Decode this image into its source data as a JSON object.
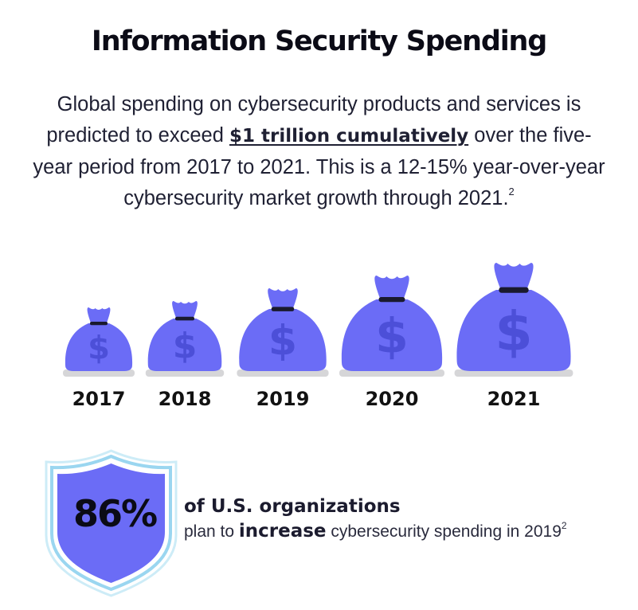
{
  "title": "Information Security Spending",
  "intro": {
    "part1": "Global spending on cybersecurity products and services is predicted to exceed ",
    "highlight": "$1 trillion cumulatively",
    "part2": " over the five-year period from 2017 to 2021. This is a 12-15% year-over-year cybersecurity market growth through 2021.",
    "footnote": "2"
  },
  "bag_icon": "money-bag-icon",
  "bag_symbol": "$",
  "colors": {
    "bag": "#6b6cf6",
    "bag_symbol": "#4c4fd8",
    "tie": "#1a1a2e",
    "shadow": "#d6d6d8",
    "shield_fill": "#6b6cf6",
    "shield_outline": "#9ad6f0"
  },
  "years": [
    {
      "label": "2017",
      "relative_size": 1.0
    },
    {
      "label": "2018",
      "relative_size": 1.1
    },
    {
      "label": "2019",
      "relative_size": 1.3
    },
    {
      "label": "2020",
      "relative_size": 1.5
    },
    {
      "label": "2021",
      "relative_size": 1.7
    }
  ],
  "stat": {
    "value": "86%",
    "heading": "of U.S. organizations",
    "sub_prefix": "plan to ",
    "sub_emphasis": "increase",
    "sub_suffix": " cybersecurity spending in 2019",
    "footnote": "2",
    "icon": "shield-icon"
  }
}
